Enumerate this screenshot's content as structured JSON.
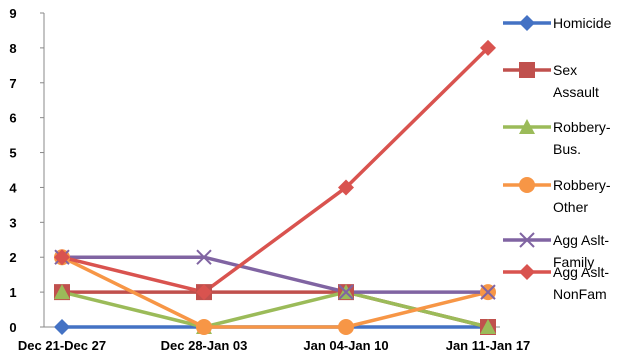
{
  "chart_data": {
    "type": "line",
    "categories": [
      "Dec 21-Dec 27",
      "Dec 28-Jan 03",
      "Jan 04-Jan 10",
      "Jan 11-Jan 17"
    ],
    "ylim": [
      0,
      9
    ],
    "yticks": [
      0,
      1,
      2,
      3,
      4,
      5,
      6,
      7,
      8,
      9
    ],
    "grid": false,
    "legend_position": "right",
    "series": [
      {
        "name": "Homicide",
        "values": [
          0,
          0,
          0,
          0
        ],
        "color": "#4472C4",
        "marker": "diamond"
      },
      {
        "name": "Sex Assault",
        "values": [
          1,
          1,
          1,
          0
        ],
        "color": "#C0504D",
        "marker": "square"
      },
      {
        "name": "Robbery-Bus.",
        "values": [
          1,
          0,
          1,
          0
        ],
        "color": "#9BBB59",
        "marker": "triangle"
      },
      {
        "name": "Robbery-Other",
        "values": [
          2,
          0,
          0,
          1
        ],
        "color": "#F79646",
        "marker": "circle"
      },
      {
        "name": "Agg Aslt-Family",
        "values": [
          2,
          2,
          1,
          1
        ],
        "color": "#8064A2",
        "marker": "x"
      },
      {
        "name": "Agg Aslt-NonFam",
        "values": [
          2,
          1,
          4,
          8
        ],
        "color": "#D9534F",
        "marker": "diamond"
      }
    ]
  }
}
